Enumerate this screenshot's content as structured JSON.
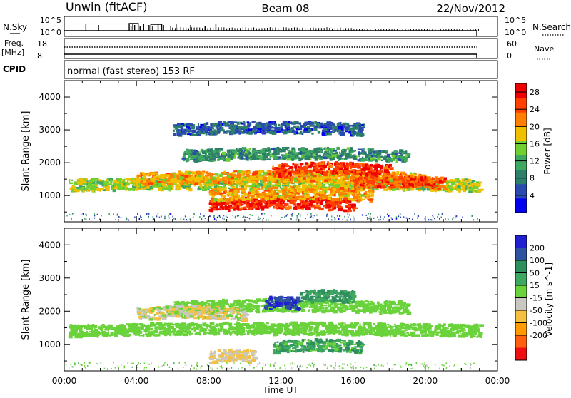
{
  "header": {
    "station": "Unwin (fitACF)",
    "beam": "Beam 08",
    "date": "22/Nov/2012"
  },
  "top_panel": {
    "nsky_label": "N.Sky",
    "nsky_ticks": [
      "10^5",
      "10^0"
    ],
    "nsearch_label": "N.Search",
    "nsearch_ticks": [
      "10^5",
      "10^0"
    ],
    "freq_label_1": "Freq.",
    "freq_label_2": "[MHz]",
    "freq_ticks": [
      "18",
      "8"
    ],
    "nave_label": "Nave",
    "nave_ticks": [
      "60",
      "0"
    ],
    "cpid_label": "CPID",
    "cpid_text": "normal (fast stereo) 153 RF"
  },
  "colors": {
    "power_scale": [
      "#0000ee",
      "#2a4ab0",
      "#2e7f6a",
      "#3fa860",
      "#70d030",
      "#f0c000",
      "#ff8000",
      "#ff4000",
      "#ee0000"
    ],
    "velocity_scale": [
      "#2020d0",
      "#2f52a0",
      "#2e8f5e",
      "#3fa860",
      "#6ad23a",
      "#c8c8c0",
      "#f4c040",
      "#ff9a00",
      "#ff6010",
      "#ee1010"
    ]
  },
  "chart_data": [
    {
      "type": "heatmap",
      "name": "Power",
      "xlabel": "",
      "ylabel": "Slant Range [km]",
      "x_ticks": [
        "00:00",
        "04:00",
        "08:00",
        "12:00",
        "16:00",
        "20:00",
        "00:00"
      ],
      "y_ticks": [
        1000,
        2000,
        3000,
        4000
      ],
      "ylim": [
        200,
        4500
      ],
      "xlim_hours": [
        0,
        24
      ],
      "colorbar": {
        "label": "Power [dB]",
        "ticks": [
          "4",
          "8",
          "12",
          "16",
          "20",
          "24",
          "28"
        ],
        "range": [
          0,
          30
        ]
      },
      "echo_regions": [
        {
          "t_start": 0.2,
          "t_end": 23.0,
          "range_km": 1300,
          "power_db": 16
        },
        {
          "t_start": 4.0,
          "t_end": 20.0,
          "range_km": 1500,
          "power_db": 20
        },
        {
          "t_start": 11.5,
          "t_end": 18.0,
          "range_km": 1750,
          "power_db": 26
        },
        {
          "t_start": 16.0,
          "t_end": 21.0,
          "range_km": 1350,
          "power_db": 24
        },
        {
          "t_start": 6.5,
          "t_end": 19.0,
          "range_km": 2200,
          "power_db": 10
        },
        {
          "t_start": 6.0,
          "t_end": 16.5,
          "range_km": 3000,
          "power_db": 6
        },
        {
          "t_start": 8.0,
          "t_end": 16.0,
          "range_km": 700,
          "power_db": 27
        },
        {
          "t_start": 8.0,
          "t_end": 17.0,
          "range_km": 1000,
          "power_db": 20
        }
      ]
    },
    {
      "type": "heatmap",
      "name": "Velocity",
      "xlabel": "Time UT",
      "ylabel": "Slant Range [km]",
      "x_ticks": [
        "00:00",
        "04:00",
        "08:00",
        "12:00",
        "16:00",
        "20:00",
        "00:00"
      ],
      "y_ticks": [
        1000,
        2000,
        3000,
        4000
      ],
      "ylim": [
        200,
        4500
      ],
      "xlim_hours": [
        0,
        24
      ],
      "colorbar": {
        "label": "Velocity [m s^-1]",
        "ticks": [
          "200",
          "100",
          "50",
          "15",
          "-15",
          "-50",
          "-100",
          "-200"
        ],
        "range": [
          -250,
          250
        ]
      },
      "echo_regions": [
        {
          "t_start": 0.2,
          "t_end": 23.0,
          "range_km": 1400,
          "velocity": 0
        },
        {
          "t_start": 6.0,
          "t_end": 19.0,
          "range_km": 2100,
          "velocity": 0
        },
        {
          "t_start": 11.0,
          "t_end": 13.0,
          "range_km": 2200,
          "velocity": 200
        },
        {
          "t_start": 13.0,
          "t_end": 16.0,
          "range_km": 2400,
          "velocity": 60
        },
        {
          "t_start": 11.5,
          "t_end": 16.5,
          "range_km": 900,
          "velocity": 40
        },
        {
          "t_start": 8.0,
          "t_end": 10.5,
          "range_km": 600,
          "velocity": -60
        },
        {
          "t_start": 4.0,
          "t_end": 10.0,
          "range_km": 1900,
          "velocity": -40
        }
      ]
    }
  ]
}
